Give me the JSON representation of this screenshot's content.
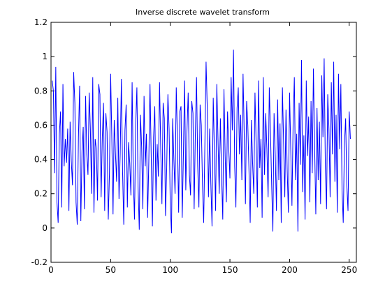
{
  "chart_data": {
    "type": "line",
    "title": "Inverse discrete wavelet transform",
    "xlabel": "",
    "ylabel": "",
    "xlim": [
      0,
      256
    ],
    "ylim": [
      -0.2,
      1.2
    ],
    "x_ticks": [
      "0",
      "50",
      "100",
      "150",
      "200",
      "250"
    ],
    "y_ticks": [
      "-0.2",
      "0",
      "0.2",
      "0.4",
      "0.6",
      "0.8",
      "1",
      "1.2"
    ],
    "grid": false,
    "line_color": "#0000ff",
    "series": [
      {
        "x_start": 1,
        "x_step": 1,
        "values": [
          0.86,
          0.8,
          0.32,
          0.94,
          0.15,
          0.03,
          0.55,
          0.68,
          0.12,
          0.84,
          0.36,
          0.52,
          0.38,
          0.58,
          0.1,
          0.62,
          0.39,
          0.25,
          0.91,
          0.73,
          0.15,
          0.02,
          0.53,
          0.83,
          0.04,
          0.45,
          0.59,
          0.11,
          0.77,
          0.43,
          0.31,
          0.79,
          0.58,
          0.2,
          0.88,
          0.09,
          0.52,
          0.46,
          0.16,
          0.84,
          0.78,
          0.18,
          0.53,
          0.73,
          0.1,
          0.67,
          0.56,
          0.05,
          0.32,
          0.9,
          0.52,
          0.08,
          0.63,
          0.44,
          0.27,
          0.76,
          0.17,
          0.43,
          0.87,
          0.33,
          0.02,
          0.57,
          0.72,
          0.12,
          0.5,
          0.38,
          0.19,
          0.85,
          0.28,
          0.05,
          0.6,
          0.82,
          0.24,
          -0.01,
          0.66,
          0.47,
          0.11,
          0.77,
          0.36,
          0.55,
          0.06,
          0.39,
          0.84,
          0.42,
          0.01,
          0.53,
          0.71,
          0.16,
          0.49,
          0.3,
          0.85,
          0.46,
          0.14,
          0.73,
          0.64,
          0.07,
          0.35,
          0.78,
          0.58,
          0.13,
          -0.03,
          0.64,
          0.4,
          0.2,
          0.82,
          0.52,
          0.09,
          0.68,
          0.71,
          0.06,
          0.43,
          0.86,
          0.22,
          0.57,
          0.79,
          0.31,
          0.19,
          0.74,
          0.67,
          0.11,
          0.55,
          0.88,
          0.36,
          0.12,
          0.72,
          0.6,
          0.25,
          0.03,
          0.49,
          0.97,
          0.7,
          0.18,
          0.58,
          0.26,
          0.01,
          0.76,
          0.45,
          0.1,
          0.84,
          0.52,
          0.2,
          0.64,
          0.31,
          0.05,
          0.81,
          0.42,
          0.15,
          0.68,
          0.46,
          0.29,
          0.88,
          0.57,
          1.04,
          0.36,
          0.12,
          0.7,
          0.82,
          0.43,
          0.66,
          0.28,
          0.9,
          0.54,
          0.14,
          0.74,
          0.6,
          0.33,
          0.03,
          0.63,
          0.38,
          0.2,
          0.79,
          0.48,
          0.12,
          0.86,
          0.35,
          0.52,
          0.06,
          0.88,
          0.31,
          0.67,
          0.46,
          0.18,
          0.82,
          0.56,
          0.25,
          -0.02,
          0.67,
          0.43,
          0.1,
          0.75,
          0.28,
          0.61,
          0.03,
          0.82,
          0.5,
          0.18,
          0.69,
          0.34,
          0.09,
          0.79,
          0.46,
          0.13,
          0.62,
          0.88,
          0.28,
          0.55,
          -0.02,
          0.73,
          0.37,
          0.98,
          0.21,
          0.54,
          0.05,
          0.86,
          0.42,
          0.65,
          0.15,
          0.74,
          0.32,
          0.93,
          0.48,
          0.08,
          0.7,
          0.28,
          0.62,
          0.14,
          0.89,
          0.53,
          0.99,
          0.35,
          0.11,
          0.78,
          0.58,
          0.18,
          0.85,
          0.43,
          0.97,
          0.27,
          0.66,
          0.09,
          0.9,
          0.46,
          0.84,
          0.22,
          0.03,
          0.49,
          0.64,
          0.25,
          0.1,
          0.68,
          0.52
        ]
      }
    ]
  }
}
